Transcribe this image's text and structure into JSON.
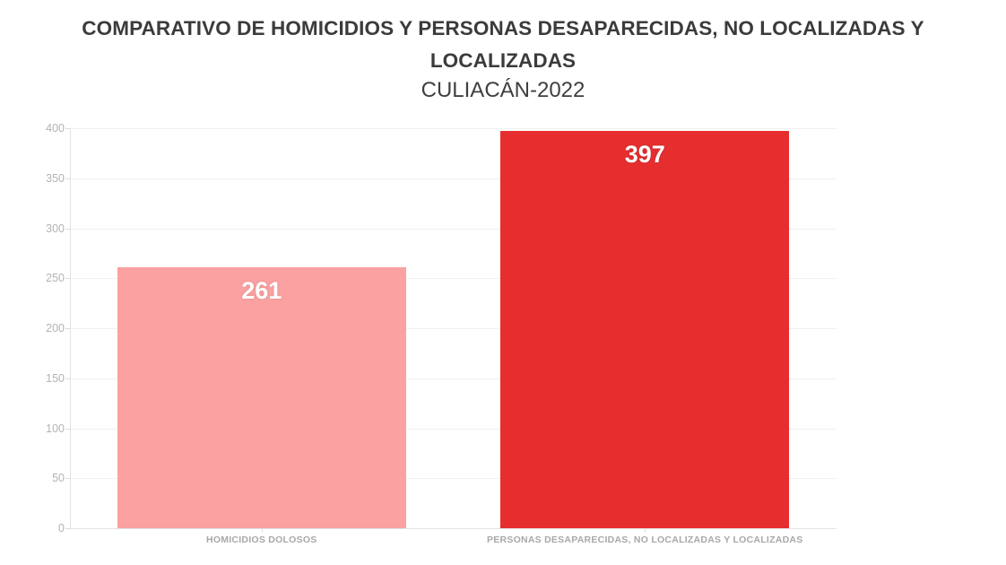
{
  "header": {
    "title_line1": "COMPARATIVO DE HOMICIDIOS Y PERSONAS DESAPARECIDAS, NO LOCALIZADAS Y",
    "title_line2": "LOCALIZADAS",
    "subtitle": "CULIACÁN-2022"
  },
  "chart_data": {
    "type": "bar",
    "title": "COMPARATIVO DE HOMICIDIOS Y PERSONAS DESAPARECIDAS, NO LOCALIZADAS Y LOCALIZADAS",
    "subtitle": "CULIACÁN-2022",
    "categories": [
      "HOMICIDIOS DOLOSOS",
      "PERSONAS DESAPARECIDAS, NO LOCALIZADAS Y LOCALIZADAS"
    ],
    "values": [
      261,
      397
    ],
    "value_labels": [
      "261",
      "397"
    ],
    "bar_colors": [
      "#FBA1A1",
      "#E62E2E"
    ],
    "value_label_color": "#ffffff",
    "xlabel": "",
    "ylabel": "",
    "ylim": [
      0,
      400
    ],
    "y_ticks": [
      0,
      50,
      100,
      150,
      200,
      250,
      300,
      350,
      400
    ],
    "grid": true,
    "legend": false,
    "colors": {
      "title_text": "#3b3b3b",
      "subtitle_text": "#3f3f3f",
      "gridline": "#f0f0f0",
      "axis_line": "#e3e3e3",
      "y_tick_label": "#b3b3b3",
      "x_category_label": "#a8a8a8"
    }
  }
}
